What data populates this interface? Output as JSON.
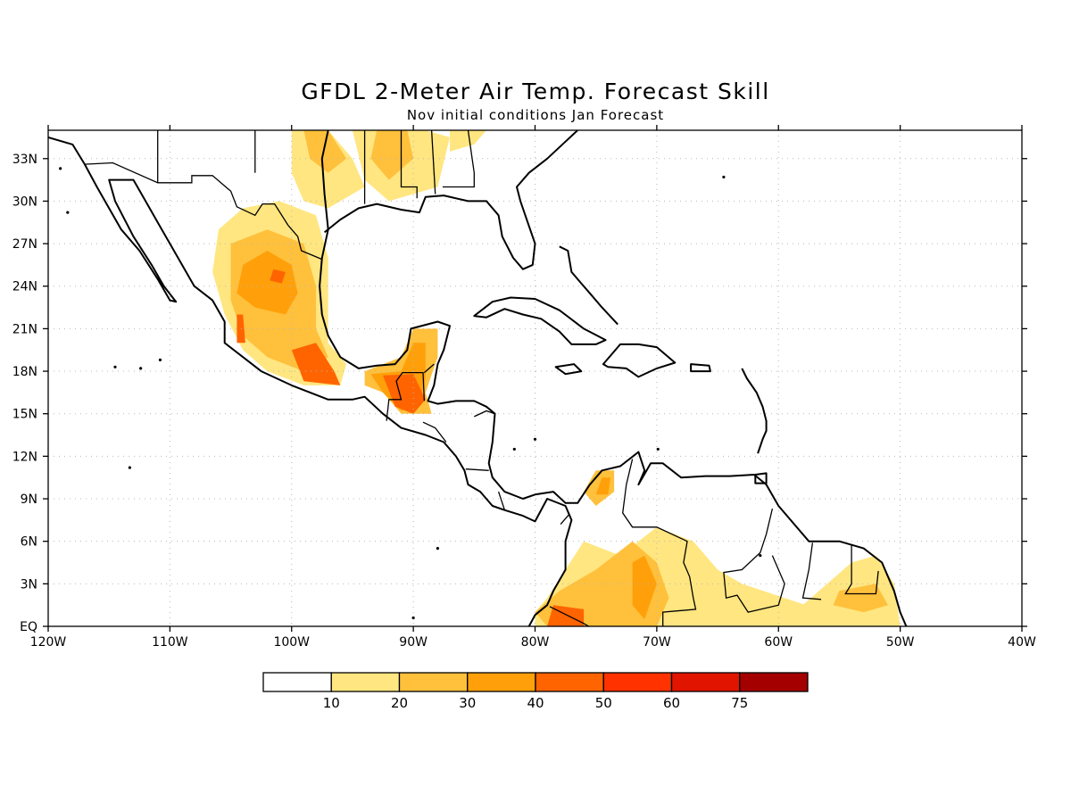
{
  "title": "GFDL 2-Meter Air Temp. Forecast Skill",
  "subtitle": "Nov initial conditions  Jan Forecast",
  "map": {
    "lon_range": [
      -120,
      -40
    ],
    "lat_range": [
      0,
      35
    ],
    "lon_ticks": [
      {
        "value": -120,
        "label": "120W"
      },
      {
        "value": -110,
        "label": "110W"
      },
      {
        "value": -100,
        "label": "100W"
      },
      {
        "value": -90,
        "label": "90W"
      },
      {
        "value": -80,
        "label": "80W"
      },
      {
        "value": -70,
        "label": "70W"
      },
      {
        "value": -60,
        "label": "60W"
      },
      {
        "value": -50,
        "label": "50W"
      },
      {
        "value": -40,
        "label": "40W"
      }
    ],
    "lat_ticks": [
      {
        "value": 0,
        "label": "EQ"
      },
      {
        "value": 3,
        "label": "3N"
      },
      {
        "value": 6,
        "label": "6N"
      },
      {
        "value": 9,
        "label": "9N"
      },
      {
        "value": 12,
        "label": "12N"
      },
      {
        "value": 15,
        "label": "15N"
      },
      {
        "value": 18,
        "label": "18N"
      },
      {
        "value": 21,
        "label": "21N"
      },
      {
        "value": 24,
        "label": "24N"
      },
      {
        "value": 27,
        "label": "27N"
      },
      {
        "value": 30,
        "label": "30N"
      },
      {
        "value": 33,
        "label": "33N"
      }
    ],
    "grid": true
  },
  "colorbar": {
    "labels": [
      "10",
      "20",
      "30",
      "40",
      "50",
      "60",
      "75"
    ],
    "colors": [
      "#ffffff",
      "#ffe680",
      "#ffc03c",
      "#ffa00a",
      "#ff6400",
      "#ff3200",
      "#e11400",
      "#a50000"
    ]
  },
  "skill_regions": [
    {
      "region": "Mexico interior",
      "level": 1,
      "points": [
        [
          -106,
          28
        ],
        [
          -104,
          29.5
        ],
        [
          -101,
          30
        ],
        [
          -98,
          29
        ],
        [
          -97,
          26
        ],
        [
          -97,
          23
        ],
        [
          -97,
          20
        ],
        [
          -95.5,
          18.5
        ],
        [
          -96,
          17
        ],
        [
          -99,
          17
        ],
        [
          -102,
          18
        ],
        [
          -104,
          19.5
        ],
        [
          -105.5,
          22
        ],
        [
          -106.5,
          25
        ]
      ]
    },
    {
      "region": "Mexico interior",
      "level": 2,
      "points": [
        [
          -105,
          27
        ],
        [
          -102,
          28
        ],
        [
          -99,
          27
        ],
        [
          -98,
          24
        ],
        [
          -98,
          21
        ],
        [
          -97,
          19
        ],
        [
          -99,
          18
        ],
        [
          -102,
          19
        ],
        [
          -104,
          20.5
        ],
        [
          -105,
          23
        ]
      ]
    },
    {
      "region": "Mexico interior",
      "level": 3,
      "points": [
        [
          -104,
          25.5
        ],
        [
          -102,
          26.5
        ],
        [
          -100,
          25.5
        ],
        [
          -99.5,
          23.5
        ],
        [
          -100.5,
          22
        ],
        [
          -103,
          22.5
        ],
        [
          -104.5,
          23.5
        ]
      ]
    },
    {
      "region": "Mexico interior",
      "level": 4,
      "points": [
        [
          -101.5,
          25.2
        ],
        [
          -100.5,
          25
        ],
        [
          -100.8,
          24.2
        ],
        [
          -101.8,
          24.4
        ]
      ]
    },
    {
      "region": "Southern Mexico",
      "level": 4,
      "points": [
        [
          -100,
          19.5
        ],
        [
          -98,
          20
        ],
        [
          -96.5,
          18
        ],
        [
          -96,
          17
        ],
        [
          -99,
          17.3
        ]
      ]
    },
    {
      "region": "Southern Mexico",
      "level": 4,
      "points": [
        [
          -104.5,
          22
        ],
        [
          -104,
          22
        ],
        [
          -103.8,
          20
        ],
        [
          -104.5,
          20
        ]
      ]
    },
    {
      "region": "Texas / Southern US",
      "level": 1,
      "points": [
        [
          -100,
          35
        ],
        [
          -97,
          35
        ],
        [
          -95,
          33
        ],
        [
          -94,
          31
        ],
        [
          -97,
          29.5
        ],
        [
          -99,
          30
        ],
        [
          -100,
          32
        ]
      ]
    },
    {
      "region": "Texas / Southern US",
      "level": 2,
      "points": [
        [
          -99,
          35
        ],
        [
          -97,
          35
        ],
        [
          -95.5,
          33
        ],
        [
          -97,
          32
        ],
        [
          -98.5,
          33
        ]
      ]
    },
    {
      "region": "Texas / Southern US",
      "level": 1,
      "points": [
        [
          -95,
          35
        ],
        [
          -89,
          35
        ],
        [
          -87,
          34.5
        ],
        [
          -88,
          31
        ],
        [
          -92,
          30
        ],
        [
          -94,
          31.5
        ]
      ]
    },
    {
      "region": "Texas / Southern US",
      "level": 2,
      "points": [
        [
          -93,
          35
        ],
        [
          -90.5,
          35
        ],
        [
          -90,
          33
        ],
        [
          -92,
          31.5
        ],
        [
          -93.5,
          33
        ]
      ]
    },
    {
      "region": "Texas / Southern US",
      "level": 1,
      "points": [
        [
          -87,
          35
        ],
        [
          -84,
          35
        ],
        [
          -85,
          34
        ],
        [
          -87,
          33.5
        ]
      ]
    },
    {
      "region": "Yucatan / Guatemala",
      "level": 2,
      "points": [
        [
          -94,
          18
        ],
        [
          -91,
          19
        ],
        [
          -90,
          21
        ],
        [
          -88,
          21
        ],
        [
          -88,
          19
        ],
        [
          -89,
          16.5
        ],
        [
          -88.5,
          15
        ],
        [
          -91,
          15
        ],
        [
          -92.5,
          16.5
        ],
        [
          -94,
          17
        ]
      ]
    },
    {
      "region": "Yucatan / Guatemala",
      "level": 3,
      "points": [
        [
          -93.5,
          17.8
        ],
        [
          -91,
          18
        ],
        [
          -90,
          20
        ],
        [
          -89,
          20
        ],
        [
          -89,
          17.5
        ],
        [
          -89.5,
          15.5
        ],
        [
          -91,
          15.2
        ],
        [
          -92.5,
          16.5
        ]
      ]
    },
    {
      "region": "Yucatan / Guatemala",
      "level": 4,
      "points": [
        [
          -92.5,
          17.7
        ],
        [
          -90,
          17.8
        ],
        [
          -89,
          16
        ],
        [
          -90,
          15
        ],
        [
          -91.5,
          15.5
        ]
      ]
    },
    {
      "region": "Northern Colombia",
      "level": 2,
      "points": [
        [
          -75,
          11
        ],
        [
          -73.5,
          11
        ],
        [
          -73.5,
          9.5
        ],
        [
          -75,
          8.5
        ],
        [
          -76,
          9.5
        ]
      ]
    },
    {
      "region": "Northern Colombia",
      "level": 3,
      "points": [
        [
          -74.5,
          10.5
        ],
        [
          -73.8,
          10.5
        ],
        [
          -74,
          9.3
        ],
        [
          -75,
          9.3
        ]
      ]
    },
    {
      "region": "NW South America",
      "level": 1,
      "points": [
        [
          -79,
          2
        ],
        [
          -76,
          6
        ],
        [
          -73,
          5
        ],
        [
          -70,
          7
        ],
        [
          -67,
          6
        ],
        [
          -65,
          4
        ],
        [
          -63,
          3
        ],
        [
          -56,
          1
        ],
        [
          -55,
          0
        ],
        [
          -80,
          0
        ],
        [
          -80,
          1
        ]
      ]
    },
    {
      "region": "NW South America",
      "level": 2,
      "points": [
        [
          -78,
          2.5
        ],
        [
          -75,
          4
        ],
        [
          -72,
          6
        ],
        [
          -70,
          4.5
        ],
        [
          -69,
          2
        ],
        [
          -70,
          0
        ],
        [
          -79,
          0
        ],
        [
          -80,
          1
        ]
      ]
    },
    {
      "region": "NW South America",
      "level": 3,
      "points": [
        [
          -72,
          4.5
        ],
        [
          -71,
          5
        ],
        [
          -70,
          3
        ],
        [
          -71,
          0.5
        ],
        [
          -72,
          1.5
        ]
      ]
    },
    {
      "region": "NW South America",
      "level": 4,
      "points": [
        [
          -78.5,
          1.5
        ],
        [
          -76,
          1.2
        ],
        [
          -76,
          0
        ],
        [
          -79,
          0
        ]
      ]
    },
    {
      "region": "NE South America",
      "level": 1,
      "points": [
        [
          -56,
          3
        ],
        [
          -54,
          4.5
        ],
        [
          -52,
          5
        ],
        [
          -50.5,
          3
        ],
        [
          -50,
          0
        ],
        [
          -57,
          0
        ],
        [
          -58,
          1.5
        ]
      ]
    },
    {
      "region": "NE South America",
      "level": 2,
      "points": [
        [
          -55,
          2.5
        ],
        [
          -52,
          3
        ],
        [
          -51,
          1.5
        ],
        [
          -53,
          1
        ],
        [
          -55.5,
          1.5
        ]
      ]
    }
  ]
}
